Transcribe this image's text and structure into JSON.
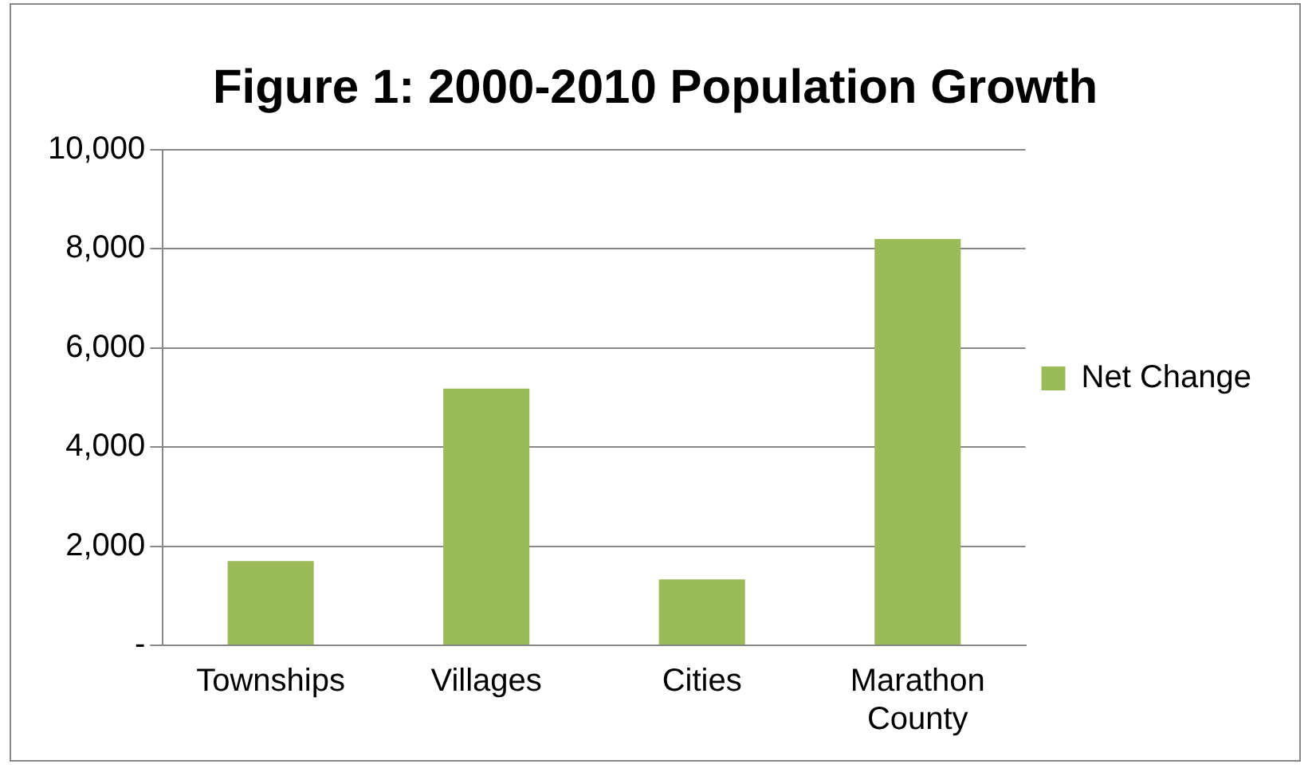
{
  "chart_data": {
    "type": "bar",
    "title": "Figure 1: 2000-2010 Population Growth",
    "categories": [
      "Townships",
      "Villages",
      "Cities",
      "Marathon County"
    ],
    "series": [
      {
        "name": "Net Change",
        "color": "#9bbb59",
        "values": [
          1700,
          5180,
          1330,
          8200
        ]
      }
    ],
    "ylim": [
      0,
      10000
    ],
    "yticks": [
      {
        "value": 0,
        "label": "-"
      },
      {
        "value": 2000,
        "label": "2,000"
      },
      {
        "value": 4000,
        "label": "4,000"
      },
      {
        "value": 6000,
        "label": "6,000"
      },
      {
        "value": 8000,
        "label": "8,000"
      },
      {
        "value": 10000,
        "label": "10,000"
      }
    ],
    "grid": "y",
    "legend": "right"
  }
}
